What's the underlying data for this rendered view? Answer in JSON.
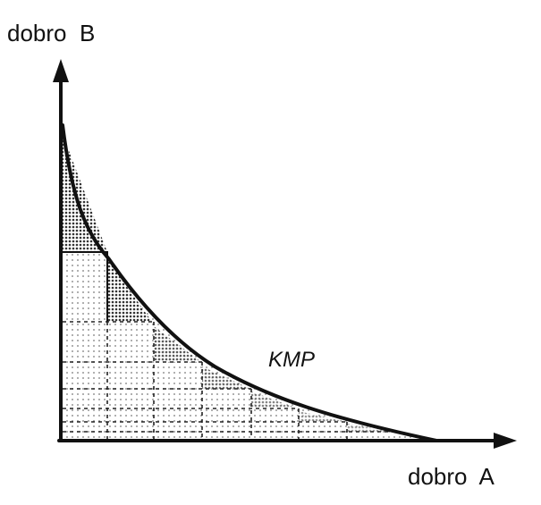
{
  "labels": {
    "y_axis": "dobro  B",
    "x_axis": "dobro  A",
    "curve": "KMP"
  },
  "colors": {
    "ink": "#111111",
    "background": "#ffffff",
    "shade": "#555555"
  }
}
